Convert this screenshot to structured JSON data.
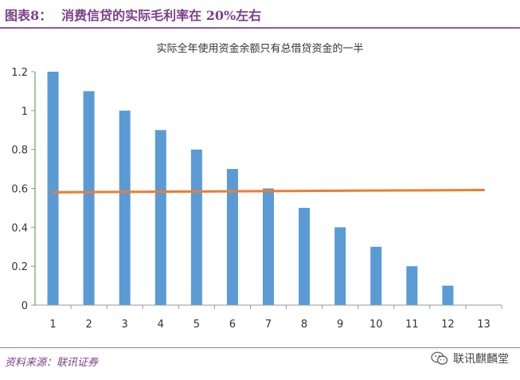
{
  "figure": {
    "label": "图表8：",
    "title": "消费信贷的实际毛利率在 20%左右"
  },
  "footer": {
    "source": "资料来源：联讯证券",
    "brand": "联讯麒麟堂",
    "brand_icon": "wechat-icon"
  },
  "chart_data": {
    "type": "bar",
    "title": "实际全年使用资金余额只有总借贷资金的一半",
    "categories": [
      "1",
      "2",
      "3",
      "4",
      "5",
      "6",
      "7",
      "8",
      "9",
      "10",
      "11",
      "12",
      "13"
    ],
    "series": [
      {
        "type": "bar",
        "color": "#5b9bd5",
        "values": [
          1.2,
          1.1,
          1.0,
          0.9,
          0.8,
          0.7,
          0.6,
          0.5,
          0.4,
          0.3,
          0.2,
          0.1,
          0
        ]
      },
      {
        "type": "line",
        "color": "#ed7d31",
        "values": [
          0.58,
          0.581,
          0.582,
          0.583,
          0.584,
          0.585,
          0.586,
          0.587,
          0.588,
          0.589,
          0.59,
          0.591,
          0.592
        ]
      }
    ],
    "ylim": [
      0,
      1.2
    ],
    "yticks": [
      "0",
      "0.2",
      "0.4",
      "0.6",
      "0.8",
      "1",
      "1.2"
    ],
    "ytick_values": [
      0,
      0.2,
      0.4,
      0.6,
      0.8,
      1.0,
      1.2
    ],
    "grid": false,
    "legend": "none",
    "xlabel": "",
    "ylabel": ""
  }
}
